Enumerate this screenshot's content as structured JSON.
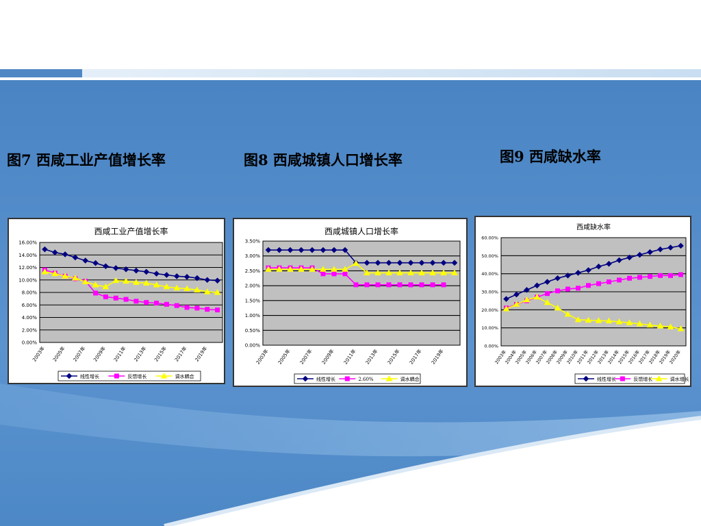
{
  "captions": {
    "fig7": "图7   西咸工业产值增长率",
    "fig8": "图8 西咸城镇人口增长率",
    "fig9": "图9 西咸缺水率"
  },
  "theme": {
    "accent_blue": "#4f87c5",
    "top_bar": "#cfe3f4",
    "plot_bg": "#c0c0c0",
    "navy": "#000080",
    "magenta": "#ff00ff",
    "yellow": "#ffff00"
  },
  "chart_data": [
    {
      "type": "line",
      "title": "西咸工业产值增长率",
      "x": [
        "2003年",
        "2004年",
        "2005年",
        "2006年",
        "2007年",
        "2008年",
        "2009年",
        "2010年",
        "2011年",
        "2012年",
        "2013年",
        "2014年",
        "2015年",
        "2016年",
        "2017年",
        "2018年",
        "2019年",
        "2020年"
      ],
      "x_tick_labels": [
        "2003年",
        "2005年",
        "2007年",
        "2009年",
        "2011年",
        "2013年",
        "2015年",
        "2017年",
        "2019年"
      ],
      "ylim": [
        0,
        16
      ],
      "y_ticks": [
        0,
        2,
        4,
        6,
        8,
        10,
        12,
        14,
        16
      ],
      "y_format": "pct2",
      "grid": true,
      "legend_position": "bottom",
      "series": [
        {
          "name": "线性增长",
          "color": "#000080",
          "marker": "diamond",
          "values": [
            14.9,
            14.4,
            14.1,
            13.6,
            13.1,
            12.7,
            12.2,
            11.9,
            11.7,
            11.5,
            11.3,
            11.0,
            10.8,
            10.6,
            10.5,
            10.3,
            10.0,
            9.9
          ]
        },
        {
          "name": "反馈增长",
          "color": "#ff00ff",
          "marker": "square",
          "values": [
            11.6,
            11.1,
            10.6,
            10.2,
            9.8,
            7.9,
            7.3,
            7.1,
            6.9,
            6.6,
            6.4,
            6.3,
            6.1,
            5.9,
            5.6,
            5.5,
            5.3,
            5.2
          ]
        },
        {
          "name": "调水耦合",
          "color": "#ffff00",
          "marker": "triangle",
          "values": [
            11.3,
            11.0,
            10.6,
            10.3,
            9.7,
            9.2,
            8.9,
            9.9,
            9.8,
            9.6,
            9.5,
            9.2,
            8.9,
            8.7,
            8.6,
            8.4,
            8.1,
            8.0
          ]
        }
      ]
    },
    {
      "type": "line",
      "title": "西咸城镇人口增长率",
      "x": [
        "2003年",
        "2004年",
        "2005年",
        "2006年",
        "2007年",
        "2008年",
        "2009年",
        "2010年",
        "2011年",
        "2012年",
        "2013年",
        "2014年",
        "2015年",
        "2016年",
        "2017年",
        "2018年",
        "2019年",
        "2020年"
      ],
      "x_tick_labels": [
        "2003年",
        "2005年",
        "2007年",
        "2009年",
        "2011年",
        "2013年",
        "2015年",
        "2017年",
        "2019年"
      ],
      "ylim": [
        0,
        3.5
      ],
      "y_ticks": [
        0,
        0.5,
        1.0,
        1.5,
        2.0,
        2.5,
        3.0,
        3.5
      ],
      "y_format": "pct2sp",
      "grid": true,
      "legend_position": "bottom",
      "series": [
        {
          "name": "线性增长",
          "color": "#000080",
          "marker": "diamond",
          "values": [
            3.2,
            3.2,
            3.2,
            3.2,
            3.2,
            3.2,
            3.2,
            3.2,
            2.77,
            2.77,
            2.77,
            2.77,
            2.77,
            2.77,
            2.77,
            2.77,
            2.77,
            2.77
          ]
        },
        {
          "name": "2.60%",
          "color": "#ff00ff",
          "marker": "square",
          "values": [
            2.6,
            2.6,
            2.6,
            2.6,
            2.6,
            2.4,
            2.4,
            2.4,
            2.03,
            2.03,
            2.03,
            2.03,
            2.03,
            2.03,
            2.03,
            2.03,
            2.03,
            null
          ]
        },
        {
          "name": "调水耦合",
          "color": "#ffff00",
          "marker": "triangle",
          "values": [
            2.55,
            2.55,
            2.55,
            2.55,
            2.55,
            2.55,
            2.55,
            2.55,
            2.75,
            2.43,
            2.43,
            2.43,
            2.43,
            2.43,
            2.43,
            2.43,
            2.43,
            2.43
          ]
        }
      ]
    },
    {
      "type": "line",
      "title": "西咸缺水率",
      "x": [
        "2003年",
        "2004年",
        "2005年",
        "2006年",
        "2007年",
        "2008年",
        "2009年",
        "2010年",
        "2011年",
        "2012年",
        "2013年",
        "2014年",
        "2015年",
        "2016年",
        "2017年",
        "2018年",
        "2019年",
        "2020年"
      ],
      "x_tick_labels": [
        "2003年",
        "2004年",
        "2005年",
        "2006年",
        "2007年",
        "2008年",
        "2009年",
        "2010年",
        "2011年",
        "2012年",
        "2013年",
        "2014年",
        "2015年",
        "2016年",
        "2017年",
        "2018年",
        "2019年",
        "2020年"
      ],
      "ylim": [
        0,
        60
      ],
      "y_ticks": [
        0,
        10,
        20,
        30,
        40,
        50,
        60
      ],
      "y_format": "pct2",
      "grid": true,
      "legend_position": "bottom",
      "series": [
        {
          "name": "线性增长",
          "color": "#000080",
          "marker": "diamond",
          "values": [
            26,
            28.5,
            31,
            33.5,
            35.5,
            37.5,
            39,
            40.5,
            42,
            44,
            45.5,
            47.5,
            49,
            50.5,
            52,
            53.5,
            54.5,
            55.5
          ]
        },
        {
          "name": "反馈增长",
          "color": "#ff00ff",
          "marker": "square",
          "values": [
            21,
            23,
            25,
            27,
            29,
            30.5,
            31.5,
            32,
            33.5,
            34.5,
            35.5,
            36.5,
            37.5,
            38,
            38.5,
            39,
            39,
            39.5
          ]
        },
        {
          "name": "调水增长",
          "color": "#ffff00",
          "marker": "triangle",
          "values": [
            20.5,
            23,
            25.5,
            27,
            24,
            21,
            17.5,
            14.5,
            14.2,
            14,
            13.8,
            13.3,
            12.8,
            12.2,
            11.5,
            11,
            10.5,
            9.5
          ]
        }
      ]
    }
  ]
}
